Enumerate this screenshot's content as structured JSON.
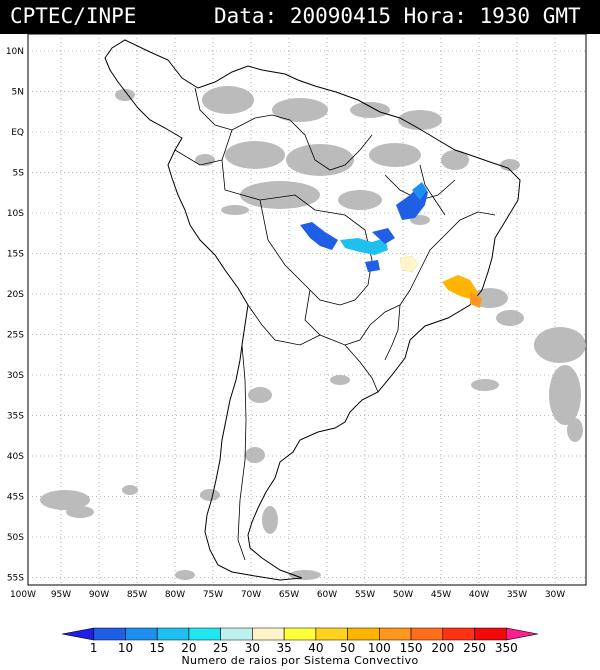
{
  "header": {
    "source": "CPTEC/INPE",
    "datetime": "Data: 20090415 Hora: 1930 GMT"
  },
  "map": {
    "lat_labels": [
      "10N",
      "5N",
      "EQ",
      "5S",
      "10S",
      "15S",
      "20S",
      "25S",
      "30S",
      "35S",
      "40S",
      "45S",
      "50S",
      "55S"
    ],
    "lon_labels": [
      "100W",
      "95W",
      "90W",
      "85W",
      "80W",
      "75W",
      "70W",
      "65W",
      "60W",
      "55W",
      "50W",
      "45W",
      "40W",
      "35W",
      "30W"
    ],
    "lat_range": [
      10,
      -55
    ],
    "lon_range": [
      -100,
      -30
    ],
    "grid": "dotted",
    "cloud_color": "#b4b4b4",
    "coast_color": "#000000"
  },
  "legend": {
    "tick_values": [
      "1",
      "10",
      "15",
      "20",
      "25",
      "30",
      "35",
      "40",
      "50",
      "100",
      "150",
      "200",
      "250",
      "350"
    ],
    "colors": [
      "#1f1fe6",
      "#1f5fe6",
      "#1e8fef",
      "#1fbff0",
      "#1fe6ef",
      "#bff0f0",
      "#fff5c8",
      "#ffff3c",
      "#ffd21e",
      "#ffb400",
      "#ff961e",
      "#ff6e1e",
      "#ff3214",
      "#f00a0a",
      "#ff1e8c"
    ],
    "caption": "Numero de raios por Sistema Convectivo"
  }
}
